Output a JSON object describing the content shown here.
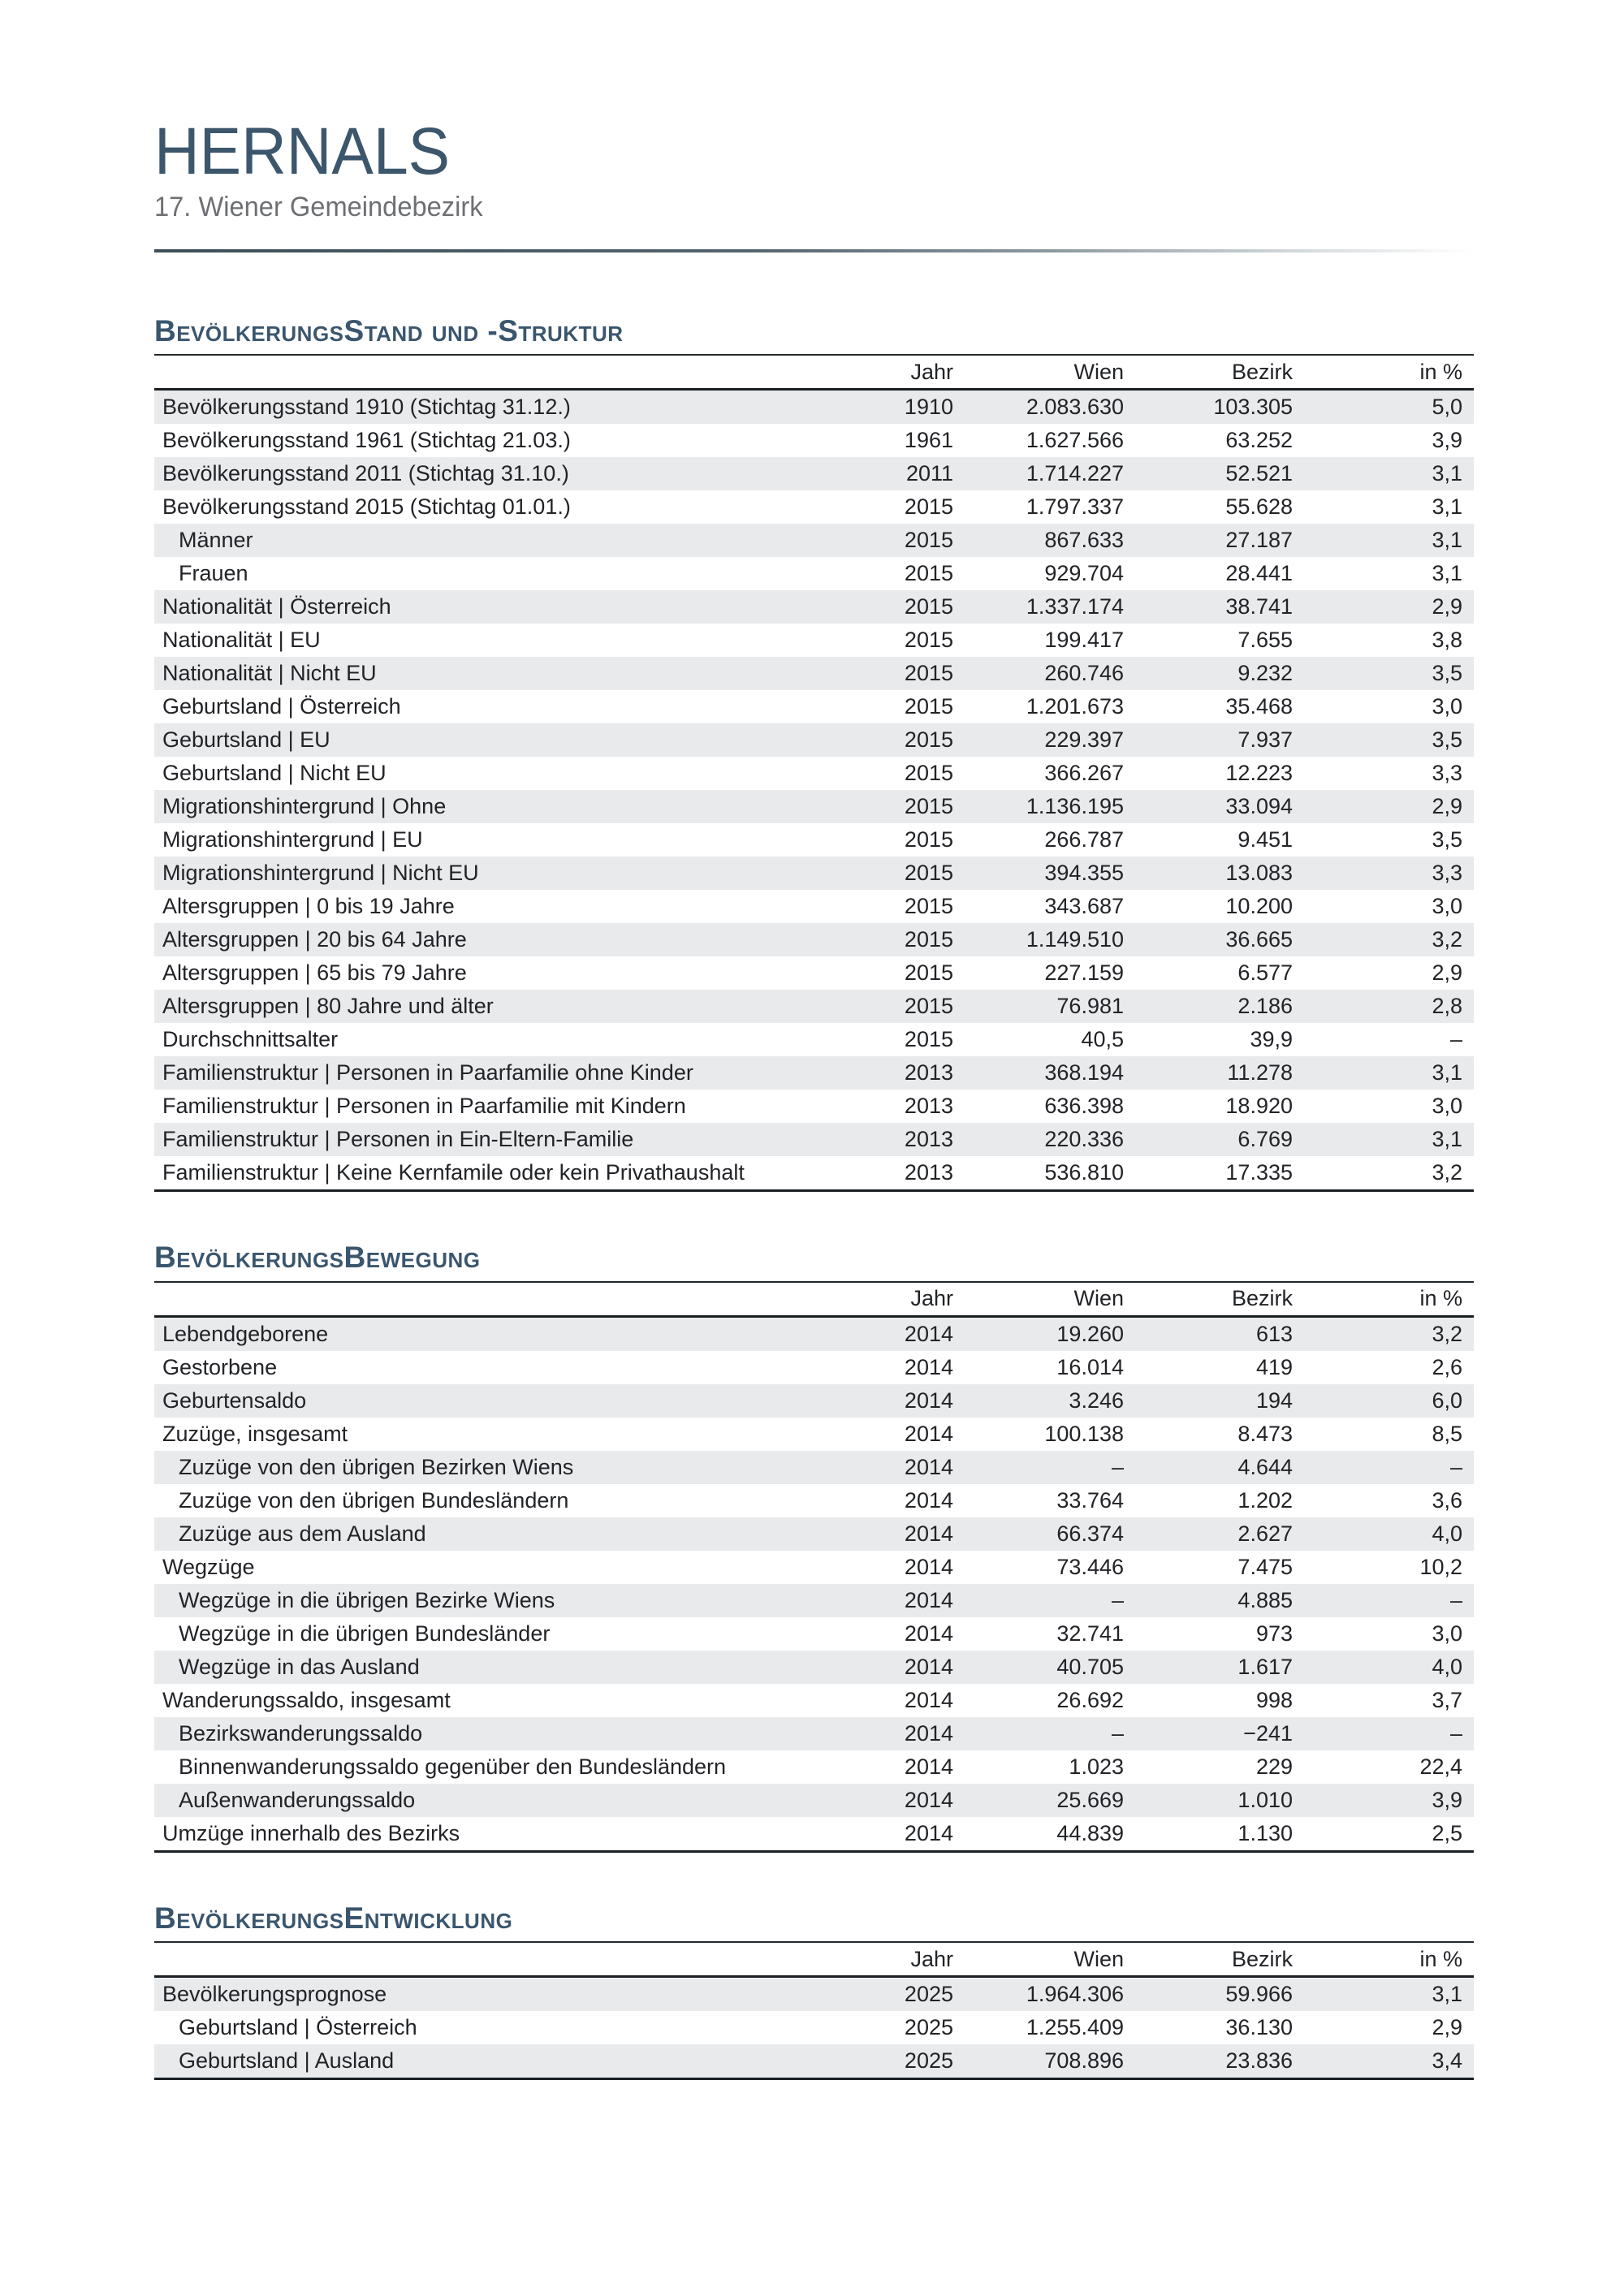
{
  "header": {
    "title": "HERNALS",
    "subtitle": "17. Wiener Gemeindebezirk"
  },
  "columns": {
    "jahr": "Jahr",
    "wien": "Wien",
    "bezirk": "Bezirk",
    "pct": "in %"
  },
  "sections": [
    {
      "title": "BevölkerungsStand und -Struktur",
      "rows": [
        {
          "label": "Bevölkerungsstand 1910 (Stichtag 31.12.)",
          "indent": false,
          "jahr": "1910",
          "wien": "2.083.630",
          "bezirk": "103.305",
          "pct": "5,0"
        },
        {
          "label": "Bevölkerungsstand 1961 (Stichtag 21.03.)",
          "indent": false,
          "jahr": "1961",
          "wien": "1.627.566",
          "bezirk": "63.252",
          "pct": "3,9"
        },
        {
          "label": "Bevölkerungsstand 2011 (Stichtag 31.10.)",
          "indent": false,
          "jahr": "2011",
          "wien": "1.714.227",
          "bezirk": "52.521",
          "pct": "3,1"
        },
        {
          "label": "Bevölkerungsstand 2015 (Stichtag 01.01.)",
          "indent": false,
          "jahr": "2015",
          "wien": "1.797.337",
          "bezirk": "55.628",
          "pct": "3,1"
        },
        {
          "label": "Männer",
          "indent": true,
          "jahr": "2015",
          "wien": "867.633",
          "bezirk": "27.187",
          "pct": "3,1"
        },
        {
          "label": "Frauen",
          "indent": true,
          "jahr": "2015",
          "wien": "929.704",
          "bezirk": "28.441",
          "pct": "3,1"
        },
        {
          "label": "Nationalität | Österreich",
          "indent": false,
          "jahr": "2015",
          "wien": "1.337.174",
          "bezirk": "38.741",
          "pct": "2,9"
        },
        {
          "label": "Nationalität | EU",
          "indent": false,
          "jahr": "2015",
          "wien": "199.417",
          "bezirk": "7.655",
          "pct": "3,8"
        },
        {
          "label": "Nationalität | Nicht EU",
          "indent": false,
          "jahr": "2015",
          "wien": "260.746",
          "bezirk": "9.232",
          "pct": "3,5"
        },
        {
          "label": "Geburtsland | Österreich",
          "indent": false,
          "jahr": "2015",
          "wien": "1.201.673",
          "bezirk": "35.468",
          "pct": "3,0"
        },
        {
          "label": "Geburtsland | EU",
          "indent": false,
          "jahr": "2015",
          "wien": "229.397",
          "bezirk": "7.937",
          "pct": "3,5"
        },
        {
          "label": "Geburtsland | Nicht EU",
          "indent": false,
          "jahr": "2015",
          "wien": "366.267",
          "bezirk": "12.223",
          "pct": "3,3"
        },
        {
          "label": "Migrationshintergrund | Ohne",
          "indent": false,
          "jahr": "2015",
          "wien": "1.136.195",
          "bezirk": "33.094",
          "pct": "2,9"
        },
        {
          "label": "Migrationshintergrund | EU",
          "indent": false,
          "jahr": "2015",
          "wien": "266.787",
          "bezirk": "9.451",
          "pct": "3,5"
        },
        {
          "label": "Migrationshintergrund | Nicht EU",
          "indent": false,
          "jahr": "2015",
          "wien": "394.355",
          "bezirk": "13.083",
          "pct": "3,3"
        },
        {
          "label": "Altersgruppen | 0 bis 19 Jahre",
          "indent": false,
          "jahr": "2015",
          "wien": "343.687",
          "bezirk": "10.200",
          "pct": "3,0"
        },
        {
          "label": "Altersgruppen | 20 bis 64 Jahre",
          "indent": false,
          "jahr": "2015",
          "wien": "1.149.510",
          "bezirk": "36.665",
          "pct": "3,2"
        },
        {
          "label": "Altersgruppen | 65 bis 79 Jahre",
          "indent": false,
          "jahr": "2015",
          "wien": "227.159",
          "bezirk": "6.577",
          "pct": "2,9"
        },
        {
          "label": "Altersgruppen | 80 Jahre und älter",
          "indent": false,
          "jahr": "2015",
          "wien": "76.981",
          "bezirk": "2.186",
          "pct": "2,8"
        },
        {
          "label": "Durchschnittsalter",
          "indent": false,
          "jahr": "2015",
          "wien": "40,5",
          "bezirk": "39,9",
          "pct": "–"
        },
        {
          "label": "Familienstruktur | Personen in Paarfamilie ohne Kinder",
          "indent": false,
          "jahr": "2013",
          "wien": "368.194",
          "bezirk": "11.278",
          "pct": "3,1"
        },
        {
          "label": "Familienstruktur | Personen in Paarfamilie mit Kindern",
          "indent": false,
          "jahr": "2013",
          "wien": "636.398",
          "bezirk": "18.920",
          "pct": "3,0"
        },
        {
          "label": "Familienstruktur | Personen in Ein-Eltern-Familie",
          "indent": false,
          "jahr": "2013",
          "wien": "220.336",
          "bezirk": "6.769",
          "pct": "3,1"
        },
        {
          "label": "Familienstruktur | Keine Kernfamile oder kein Privathaushalt",
          "indent": false,
          "jahr": "2013",
          "wien": "536.810",
          "bezirk": "17.335",
          "pct": "3,2"
        }
      ]
    },
    {
      "title": "BevölkerungsBewegung",
      "rows": [
        {
          "label": "Lebendgeborene",
          "indent": false,
          "jahr": "2014",
          "wien": "19.260",
          "bezirk": "613",
          "pct": "3,2"
        },
        {
          "label": "Gestorbene",
          "indent": false,
          "jahr": "2014",
          "wien": "16.014",
          "bezirk": "419",
          "pct": "2,6"
        },
        {
          "label": "Geburtensaldo",
          "indent": false,
          "jahr": "2014",
          "wien": "3.246",
          "bezirk": "194",
          "pct": "6,0"
        },
        {
          "label": "Zuzüge, insgesamt",
          "indent": false,
          "jahr": "2014",
          "wien": "100.138",
          "bezirk": "8.473",
          "pct": "8,5"
        },
        {
          "label": "Zuzüge von den übrigen Bezirken Wiens",
          "indent": true,
          "jahr": "2014",
          "wien": "–",
          "bezirk": "4.644",
          "pct": "–"
        },
        {
          "label": "Zuzüge von den übrigen Bundesländern",
          "indent": true,
          "jahr": "2014",
          "wien": "33.764",
          "bezirk": "1.202",
          "pct": "3,6"
        },
        {
          "label": "Zuzüge aus dem Ausland",
          "indent": true,
          "jahr": "2014",
          "wien": "66.374",
          "bezirk": "2.627",
          "pct": "4,0"
        },
        {
          "label": "Wegzüge",
          "indent": false,
          "jahr": "2014",
          "wien": "73.446",
          "bezirk": "7.475",
          "pct": "10,2"
        },
        {
          "label": "Wegzüge in die übrigen Bezirke Wiens",
          "indent": true,
          "jahr": "2014",
          "wien": "–",
          "bezirk": "4.885",
          "pct": "–"
        },
        {
          "label": "Wegzüge in die übrigen Bundesländer",
          "indent": true,
          "jahr": "2014",
          "wien": "32.741",
          "bezirk": "973",
          "pct": "3,0"
        },
        {
          "label": "Wegzüge in das Ausland",
          "indent": true,
          "jahr": "2014",
          "wien": "40.705",
          "bezirk": "1.617",
          "pct": "4,0"
        },
        {
          "label": "Wanderungssaldo, insgesamt",
          "indent": false,
          "jahr": "2014",
          "wien": "26.692",
          "bezirk": "998",
          "pct": "3,7"
        },
        {
          "label": "Bezirkswanderungssaldo",
          "indent": true,
          "jahr": "2014",
          "wien": "–",
          "bezirk": "−241",
          "pct": "–"
        },
        {
          "label": "Binnenwanderungssaldo gegenüber den Bundesländern",
          "indent": true,
          "jahr": "2014",
          "wien": "1.023",
          "bezirk": "229",
          "pct": "22,4"
        },
        {
          "label": "Außenwanderungssaldo",
          "indent": true,
          "jahr": "2014",
          "wien": "25.669",
          "bezirk": "1.010",
          "pct": "3,9"
        },
        {
          "label": "Umzüge innerhalb des Bezirks",
          "indent": false,
          "jahr": "2014",
          "wien": "44.839",
          "bezirk": "1.130",
          "pct": "2,5"
        }
      ]
    },
    {
      "title": "BevölkerungsEntwicklung",
      "rows": [
        {
          "label": "Bevölkerungsprognose",
          "indent": false,
          "jahr": "2025",
          "wien": "1.964.306",
          "bezirk": "59.966",
          "pct": "3,1"
        },
        {
          "label": "Geburtsland | Österreich",
          "indent": true,
          "jahr": "2025",
          "wien": "1.255.409",
          "bezirk": "36.130",
          "pct": "2,9"
        },
        {
          "label": "Geburtsland | Ausland",
          "indent": true,
          "jahr": "2025",
          "wien": "708.896",
          "bezirk": "23.836",
          "pct": "3,4"
        }
      ]
    }
  ],
  "colors": {
    "heading_blue": "#3a566e",
    "title_blue": "#3c566c",
    "subtitle_gray": "#6d6f72",
    "row_shade": "#e8eaec",
    "rule_dark": "#1a1f23"
  }
}
